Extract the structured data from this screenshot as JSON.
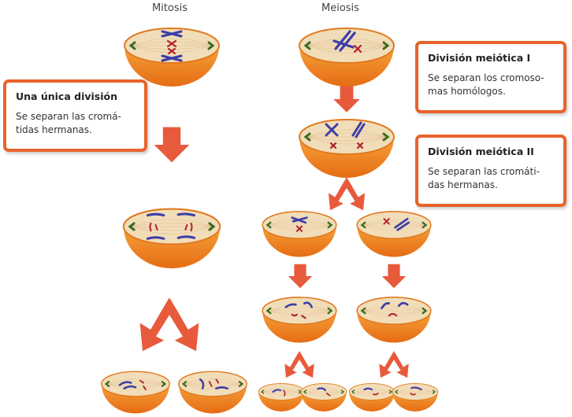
{
  "titles": {
    "mitosis": "Mitosis",
    "meiosis": "Meiosis"
  },
  "boxes": {
    "mitosis": {
      "heading": "Una única división",
      "text_line1": "Se separan las cromá-",
      "text_line2": "tidas hermanas."
    },
    "meiosis1": {
      "heading": "División meiótica I",
      "text_line1": "Se separan los cromoso-",
      "text_line2": "mas homólogos."
    },
    "meiosis2": {
      "heading": "División meiótica II",
      "text_line1": "Se separan las cromáti-",
      "text_line2": "das hermanas."
    }
  },
  "colors": {
    "cell_fill": "#f08a24",
    "cell_top": "#f2ddb9",
    "arrow": "#e85a3c",
    "chromosome_blue": "#3d3ea8",
    "chromosome_red": "#b1222e",
    "pole_green": "#3a6b1f",
    "box_border": "#e8632c"
  }
}
